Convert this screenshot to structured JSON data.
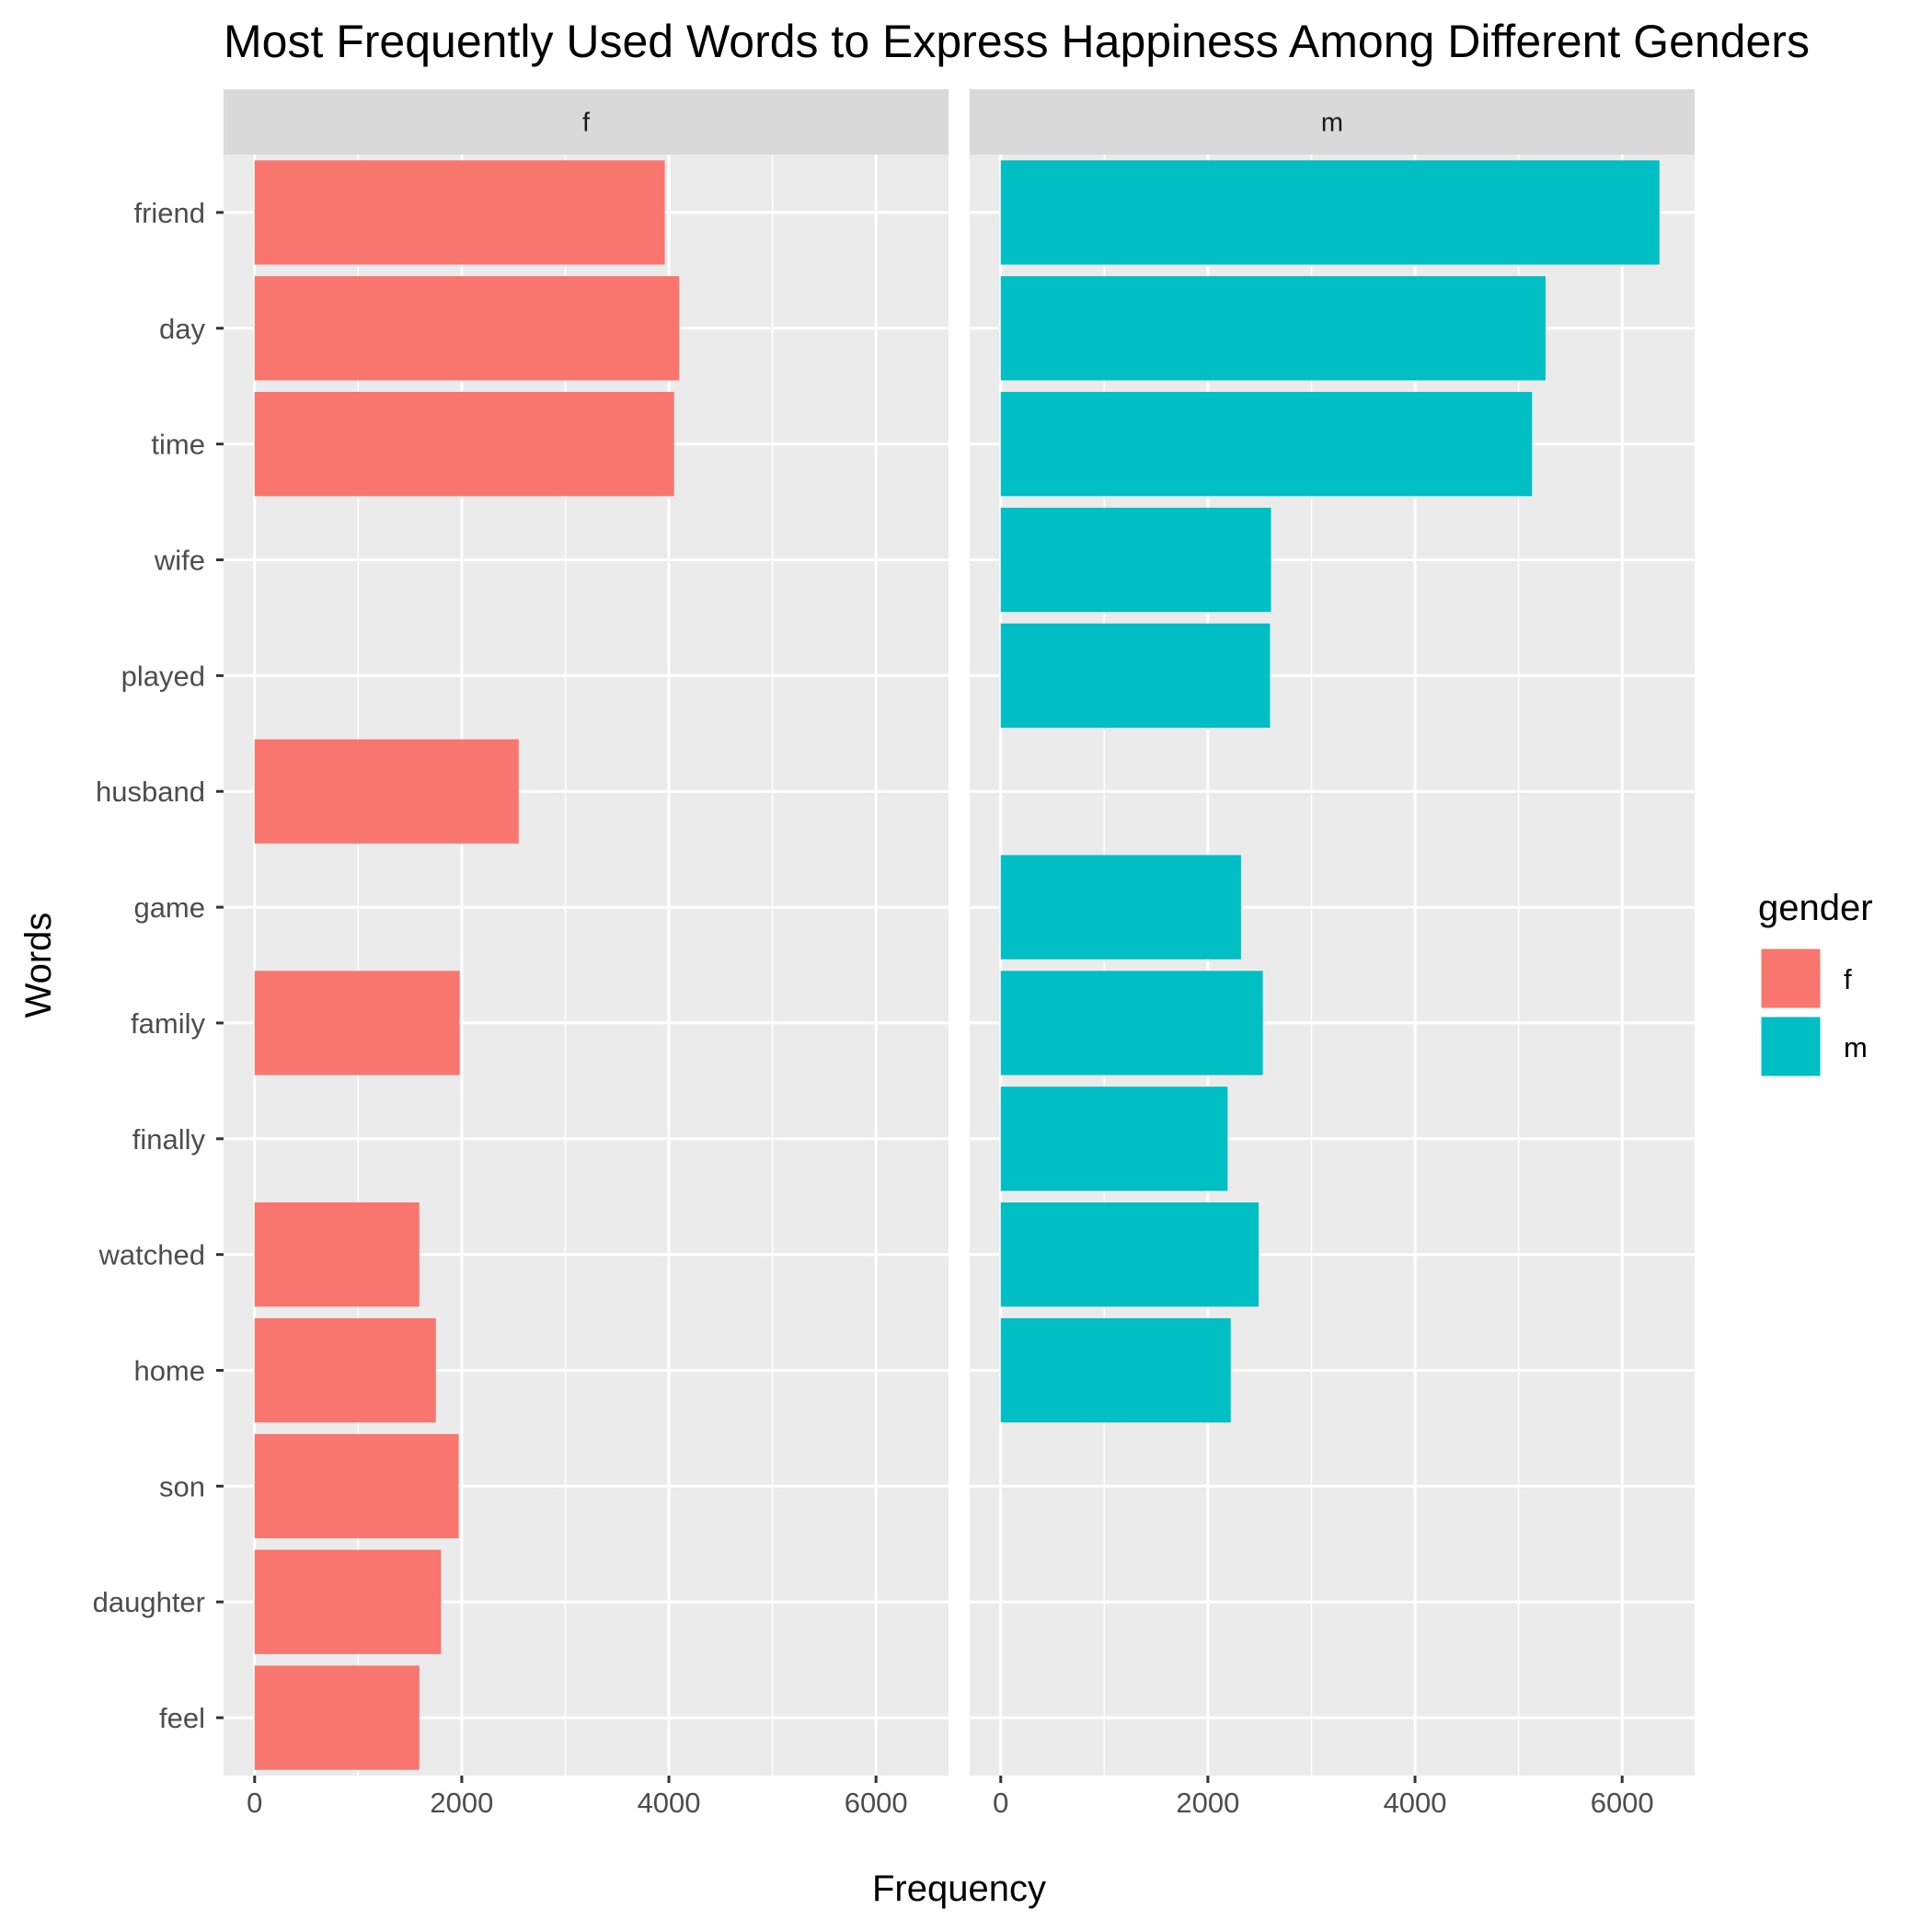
{
  "chart_data": {
    "type": "bar",
    "orientation": "horizontal",
    "title": "Most Frequently Used Words to Express Happiness Among Different Genders",
    "xlabel": "Frequency",
    "ylabel": "Words",
    "xlim": [
      -300,
      6700
    ],
    "x_ticks": [
      0,
      2000,
      4000,
      6000
    ],
    "x_tick_labels": [
      "0",
      "2000",
      "4000",
      "6000"
    ],
    "grid": true,
    "legend": {
      "title": "gender",
      "position": "right",
      "entries": [
        "f",
        "m"
      ]
    },
    "categories": [
      "friend",
      "day",
      "time",
      "wife",
      "played",
      "husband",
      "game",
      "family",
      "finally",
      "watched",
      "home",
      "son",
      "daughter",
      "feel"
    ],
    "facets": [
      {
        "label": "f",
        "color": "#F8766D",
        "values": [
          3960,
          4100,
          4050,
          null,
          null,
          2550,
          null,
          1980,
          null,
          1590,
          1750,
          1970,
          1800,
          1590
        ]
      },
      {
        "label": "m",
        "color": "#00BFC4",
        "values": [
          6360,
          5260,
          5130,
          2610,
          2600,
          null,
          2320,
          2530,
          2190,
          2490,
          2220,
          null,
          null,
          null
        ]
      }
    ]
  }
}
